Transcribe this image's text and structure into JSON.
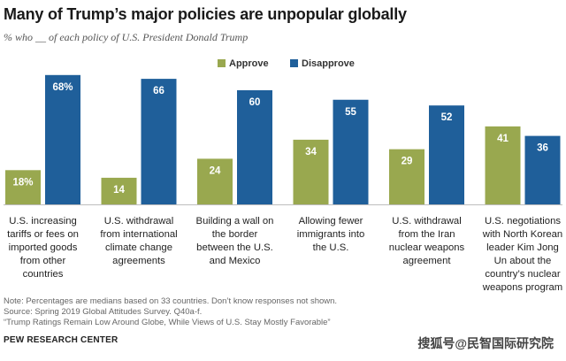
{
  "title": "Many of Trump’s major policies are unpopular globally",
  "subtitle": "% who __ of each policy of U.S. President Donald Trump",
  "colors": {
    "approve": "#99a84f",
    "disapprove": "#1f5f9a"
  },
  "chart_data": {
    "type": "bar",
    "title": "Many of Trump’s major policies are unpopular globally",
    "subtitle": "% who __ of each policy of U.S. President Donald Trump",
    "ylim": [
      0,
      75
    ],
    "legend_position": "top",
    "grid": false,
    "categories": [
      "U.S. increasing tariffs or fees on imported goods from other countries",
      "U.S. withdrawal from international climate change agreements",
      "Building a wall on the border between the U.S. and Mexico",
      "Allowing fewer immigrants into the U.S.",
      "U.S. withdrawal from the Iran nuclear weapons agreement",
      "U.S. negotiations with North Korean leader Kim Jong Un about the country’s nuclear weapons program"
    ],
    "series": [
      {
        "name": "Approve",
        "values": [
          18,
          14,
          24,
          34,
          29,
          41
        ],
        "labels": [
          "18%",
          "14",
          "24",
          "34",
          "29",
          "41"
        ]
      },
      {
        "name": "Disapprove",
        "values": [
          68,
          66,
          60,
          55,
          52,
          36
        ],
        "labels": [
          "68%",
          "66",
          "60",
          "55",
          "52",
          "36"
        ]
      }
    ]
  },
  "category_lines": [
    [
      "U.S. increasing",
      "tariffs or fees on",
      "imported goods",
      "from other",
      "countries"
    ],
    [
      "U.S. withdrawal",
      "from international",
      "climate change",
      "agreements"
    ],
    [
      "Building a wall on",
      "the border",
      "between the U.S.",
      "and Mexico"
    ],
    [
      "Allowing fewer",
      "immigrants into",
      "the U.S."
    ],
    [
      "U.S. withdrawal",
      "from the Iran",
      "nuclear weapons",
      "agreement"
    ],
    [
      "U.S. negotiations",
      "with North Korean",
      "leader Kim Jong",
      "Un about the",
      "country’s nuclear",
      "weapons program"
    ]
  ],
  "notes": [
    "Note: Percentages are medians based on 33 countries. Don’t know responses not shown.",
    "Source: Spring 2019 Global Attitudes Survey. Q40a-f.",
    "“Trump Ratings Remain Low Around Globe, While Views of U.S. Stay Mostly Favorable”"
  ],
  "source_org": "PEW RESEARCH CENTER",
  "watermark": "搜狐号@民智国际研究院"
}
